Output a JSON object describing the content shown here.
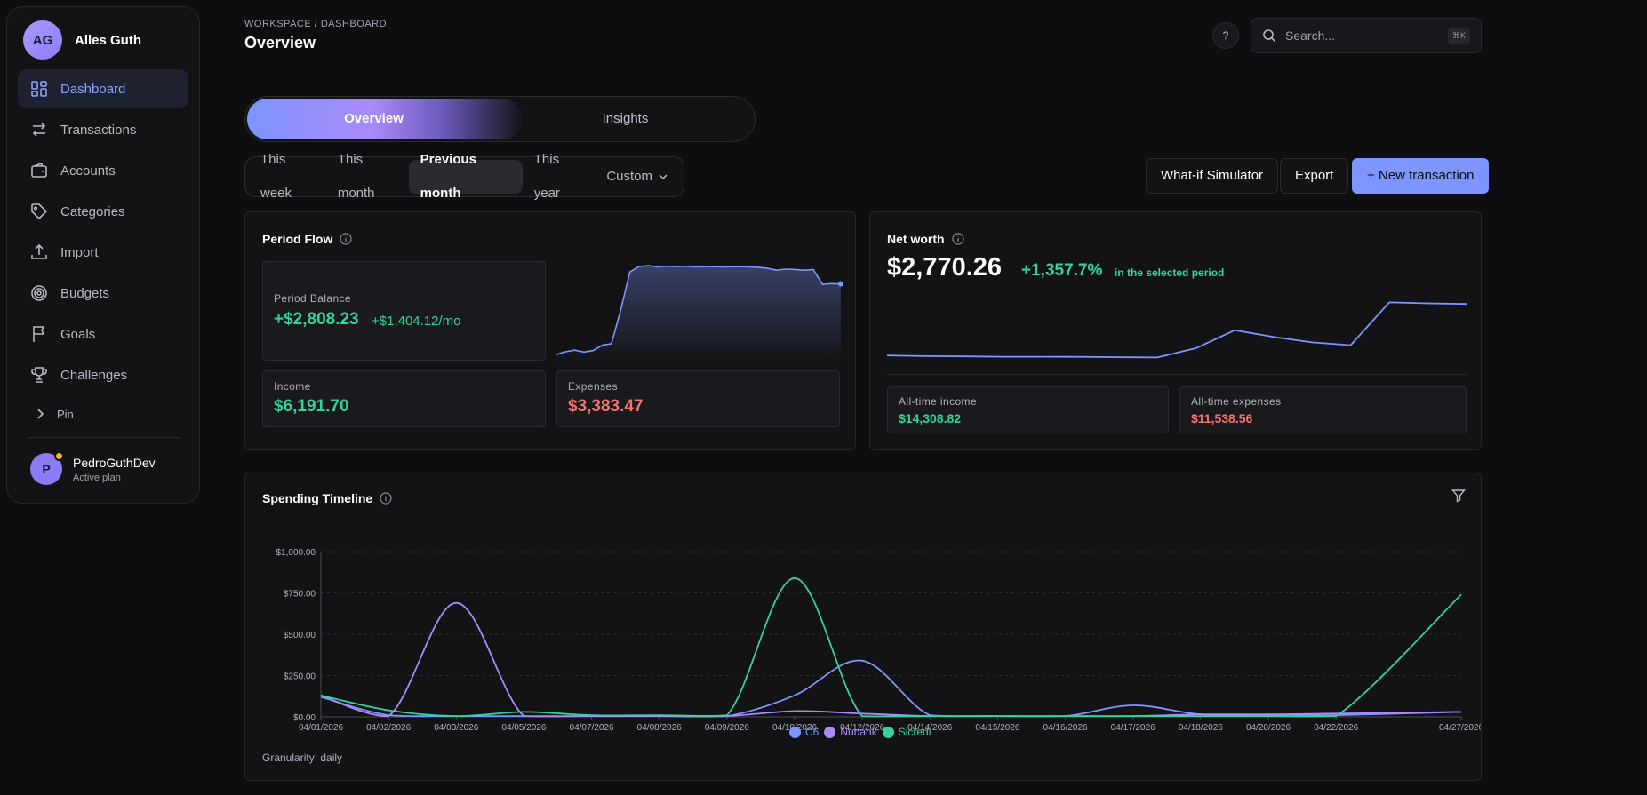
{
  "sidebar": {
    "brand_initials": "AG",
    "brand_name": "Alles Guth",
    "items": [
      {
        "label": "Dashboard",
        "icon": "dashboard-icon",
        "active": true
      },
      {
        "label": "Transactions",
        "icon": "arrows-exchange-icon"
      },
      {
        "label": "Accounts",
        "icon": "wallet-icon"
      },
      {
        "label": "Categories",
        "icon": "tag-icon"
      },
      {
        "label": "Import",
        "icon": "upload-icon"
      },
      {
        "label": "Budgets",
        "icon": "target-icon"
      },
      {
        "label": "Goals",
        "icon": "flag-icon"
      },
      {
        "label": "Challenges",
        "icon": "trophy-icon"
      }
    ],
    "pin_label": "Pin",
    "user": {
      "initial": "P",
      "name": "PedroGuthDev",
      "plan": "Active plan"
    }
  },
  "header": {
    "breadcrumb": "WORKSPACE / DASHBOARD",
    "title": "Overview",
    "help_label": "?",
    "search_placeholder": "Search...",
    "search_shortcut": "⌘K"
  },
  "view_tabs": [
    "Overview",
    "Insights"
  ],
  "periods": [
    "This week",
    "This month",
    "Previous month",
    "This year",
    "Custom"
  ],
  "active_period": "Previous month",
  "actions": {
    "simulator": "What-if Simulator",
    "export": "Export",
    "new_transaction": "+ New transaction"
  },
  "period_flow": {
    "title": "Period Flow",
    "balance_label": "Period Balance",
    "balance_value": "+$2,808.23",
    "balance_rate": "+$1,404.12/mo",
    "income_label": "Income",
    "income_value": "$6,191.70",
    "expenses_label": "Expenses",
    "expenses_value": "$3,383.47",
    "sparkline": [
      120,
      200,
      240,
      190,
      230,
      380,
      420,
      1350,
      2400,
      2550,
      2580,
      2540,
      2560,
      2550,
      2560,
      2540,
      2545,
      2550,
      2540,
      2545,
      2550,
      2540,
      2530,
      2500,
      2450,
      2480,
      2470,
      2450,
      2470,
      2060,
      2080,
      2070
    ]
  },
  "net_worth": {
    "title": "Net worth",
    "value": "$2,770.26",
    "change": "+1,357.7%",
    "change_note": "in the selected period",
    "series": [
      190,
      170,
      160,
      150,
      150,
      148,
      135,
      128,
      420,
      980,
      770,
      600,
      510,
      1850,
      1820,
      1800
    ],
    "income_label": "All-time income",
    "income_value": "$14,308.82",
    "expenses_label": "All-time expenses",
    "expenses_value": "$11,538.56"
  },
  "spending": {
    "title": "Spending Timeline",
    "granularity": "Granularity: daily",
    "legend": [
      {
        "name": "C6",
        "color": "#7c95ff"
      },
      {
        "name": "Nubank",
        "color": "#a98bfa"
      },
      {
        "name": "Sicredi",
        "color": "#34d399"
      }
    ]
  },
  "chart_data": {
    "type": "line",
    "x": [
      "04/01/2026",
      "04/02/2026",
      "04/03/2026",
      "04/05/2026",
      "04/07/2026",
      "04/08/2026",
      "04/09/2026",
      "04/10/2026",
      "04/12/2026",
      "04/14/2026",
      "04/15/2026",
      "04/16/2026",
      "04/17/2026",
      "04/18/2026",
      "04/20/2026",
      "04/22/2026",
      "04/27/2026"
    ],
    "x_positions": [
      0,
      1,
      2,
      3,
      4,
      5,
      6,
      7,
      8,
      9,
      10,
      11,
      12,
      13,
      14,
      15,
      16.85
    ],
    "series": [
      {
        "name": "C6",
        "color": "#7c95ff",
        "values": [
          120,
          10,
          5,
          5,
          5,
          5,
          5,
          130,
          340,
          10,
          5,
          5,
          70,
          15,
          10,
          10,
          30
        ]
      },
      {
        "name": "Nubank",
        "color": "#a98bfa",
        "values": [
          130,
          5,
          690,
          5,
          5,
          5,
          5,
          35,
          20,
          5,
          5,
          5,
          5,
          15,
          15,
          20,
          30
        ]
      },
      {
        "name": "Sicredi",
        "color": "#34d399",
        "values": [
          130,
          40,
          5,
          30,
          10,
          10,
          10,
          840,
          5,
          5,
          5,
          5,
          5,
          5,
          5,
          5,
          740
        ]
      }
    ],
    "yticks": [
      "$0.00",
      "$250.00",
      "$500.00",
      "$750.00",
      "$1,000.00"
    ],
    "ylim": [
      0,
      1000
    ]
  }
}
